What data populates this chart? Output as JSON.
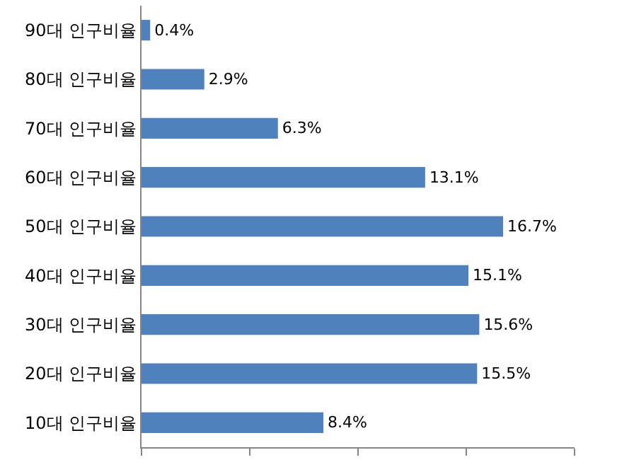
{
  "chart_data": {
    "type": "bar",
    "orientation": "horizontal",
    "categories": [
      "90대 인구비율",
      "80대 인구비율",
      "70대 인구비율",
      "60대 인구비율",
      "50대 인구비율",
      "40대 인구비율",
      "30대 인구비율",
      "20대 인구비율",
      "10대 인구비율"
    ],
    "values": [
      0.4,
      2.9,
      6.3,
      13.1,
      16.7,
      15.1,
      15.6,
      15.5,
      8.4
    ],
    "value_labels": [
      "0.4%",
      "2.9%",
      "6.3%",
      "13.1%",
      "16.7%",
      "15.1%",
      "15.6%",
      "15.5%",
      "8.4%"
    ],
    "color": "#4f81bd",
    "xlim": [
      0,
      20
    ],
    "xticks": [
      {
        "value": 0,
        "label": null
      },
      {
        "value": 5,
        "label": null
      },
      {
        "value": 10,
        "label": null
      },
      {
        "value": 15,
        "label": null
      },
      {
        "value": 20,
        "label": null
      }
    ],
    "tick_labels": "y"
  }
}
